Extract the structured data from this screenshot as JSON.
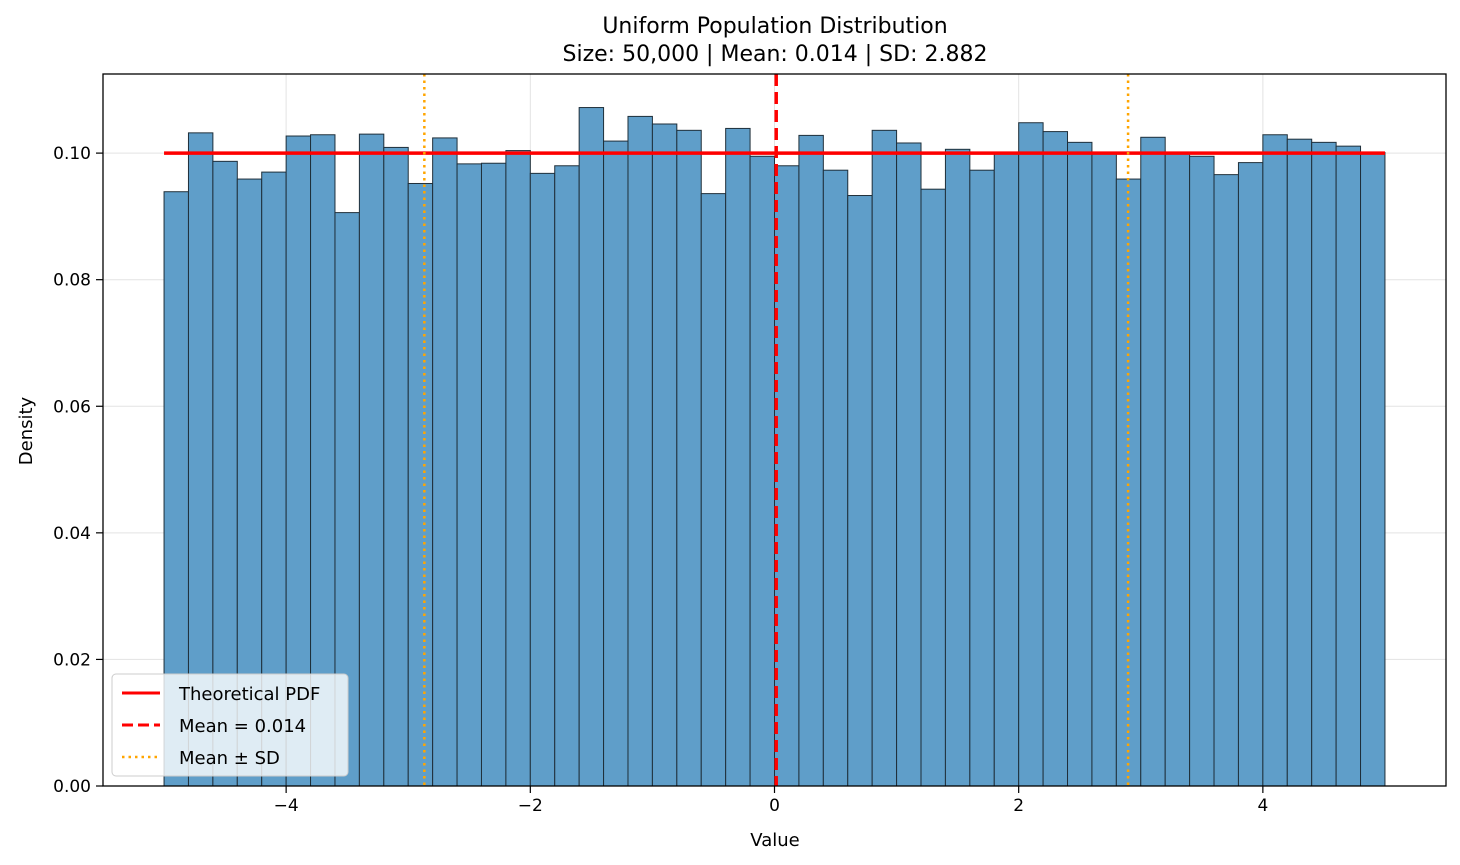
{
  "chart_data": {
    "type": "bar",
    "title": "Uniform Population Distribution",
    "subtitle": "Size: 50,000 | Mean: 0.014 | SD: 2.882",
    "xlabel": "Value",
    "ylabel": "Density",
    "xlim": [
      -5.5,
      5.5
    ],
    "ylim": [
      0,
      0.1125
    ],
    "xticks": [
      -4,
      -2,
      0,
      2,
      4
    ],
    "xtick_labels": [
      "−4",
      "−2",
      "0",
      "2",
      "4"
    ],
    "yticks": [
      0.0,
      0.02,
      0.04,
      0.06,
      0.08,
      0.1
    ],
    "ytick_labels": [
      "0.00",
      "0.02",
      "0.04",
      "0.06",
      "0.08",
      "0.10"
    ],
    "grid": true,
    "legend_position": "lower-left",
    "bins": {
      "start": -5,
      "end": 5,
      "count": 50,
      "values": [
        0.0939,
        0.1032,
        0.0987,
        0.0959,
        0.097,
        0.1027,
        0.1029,
        0.0906,
        0.103,
        0.1009,
        0.0952,
        0.1024,
        0.0983,
        0.0984,
        0.1004,
        0.0968,
        0.098,
        0.1072,
        0.1019,
        0.1058,
        0.1046,
        0.1036,
        0.0936,
        0.1039,
        0.0995,
        0.098,
        0.1028,
        0.0973,
        0.0933,
        0.1036,
        0.1016,
        0.0943,
        0.1006,
        0.0973,
        0.1,
        0.1048,
        0.1034,
        0.1017,
        0.0999,
        0.0959,
        0.1025,
        0.0999,
        0.0995,
        0.0966,
        0.0985,
        0.1029,
        0.1022,
        0.1017,
        0.1011,
        0.1001
      ]
    },
    "theoretical_pdf": {
      "x": [
        -5,
        5
      ],
      "y": 0.1
    },
    "mean": 0.014,
    "sd": 2.882,
    "legend": [
      {
        "label": "Theoretical PDF",
        "style": "solid",
        "color": "#ff0000"
      },
      {
        "label": "Mean = 0.014",
        "style": "dashed",
        "color": "#ff0000"
      },
      {
        "label": "Mean ± SD",
        "style": "dotted",
        "color": "#ffa500"
      }
    ],
    "colors": {
      "bar_fill": "#5f9ec9",
      "bar_edge": "#1f2f3a",
      "pdf_line": "#ff0000",
      "mean_line": "#ff0000",
      "sd_line": "#ffa500"
    }
  }
}
